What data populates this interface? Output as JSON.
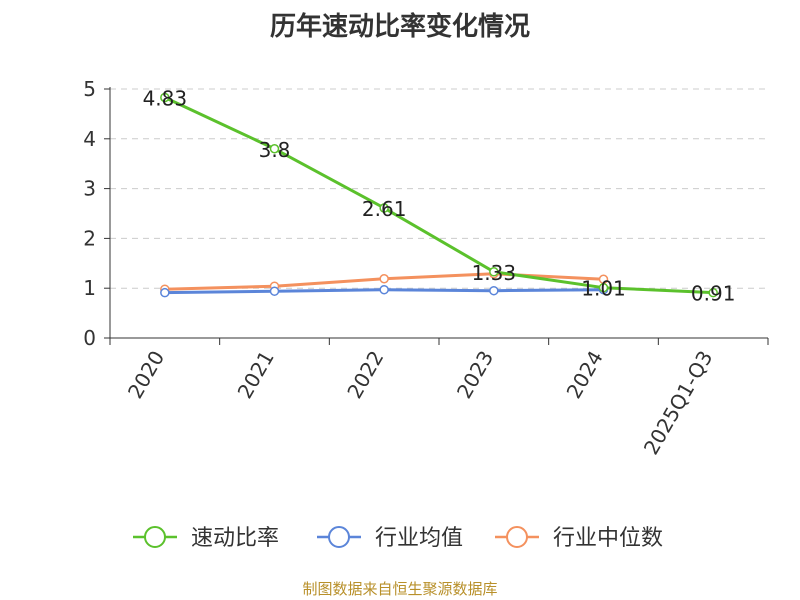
{
  "chart_data": {
    "type": "line",
    "title": "历年速动比率变化情况",
    "categories": [
      "2020",
      "2021",
      "2022",
      "2023",
      "2024",
      "2025Q1-Q3"
    ],
    "ylim": [
      0,
      5
    ],
    "yticks": [
      0,
      1,
      2,
      3,
      4,
      5
    ],
    "grid": true,
    "legend_position": "bottom",
    "series": [
      {
        "name": "速动比率",
        "color": "#5bc12c",
        "values": [
          4.83,
          3.8,
          2.61,
          1.33,
          1.01,
          0.91
        ],
        "labels": [
          "4.83",
          "3.8",
          "2.61",
          "1.33",
          "1.01",
          "0.91"
        ]
      },
      {
        "name": "行业均值",
        "color": "#5b85d9",
        "values": [
          0.91,
          0.94,
          0.97,
          0.95,
          0.97,
          null
        ]
      },
      {
        "name": "行业中位数",
        "color": "#f4915e",
        "values": [
          0.98,
          1.04,
          1.19,
          1.29,
          1.18,
          null
        ]
      }
    ]
  },
  "source": "制图数据来自恒生聚源数据库"
}
